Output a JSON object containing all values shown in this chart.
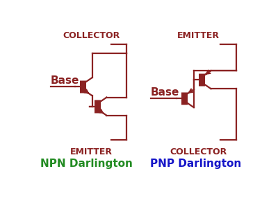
{
  "circuit_color": "#8B2222",
  "npn_label_color": "#228B22",
  "pnp_label_color": "#1515C8",
  "bg_color": "#FFFFFF",
  "npn_title": "NPN Darlington",
  "pnp_title": "PNP Darlington",
  "collector_label": "COLLECTOR",
  "emitter_label": "EMITTER",
  "base_label": "Base",
  "lw": 1.6,
  "bar_lw": 6.5
}
